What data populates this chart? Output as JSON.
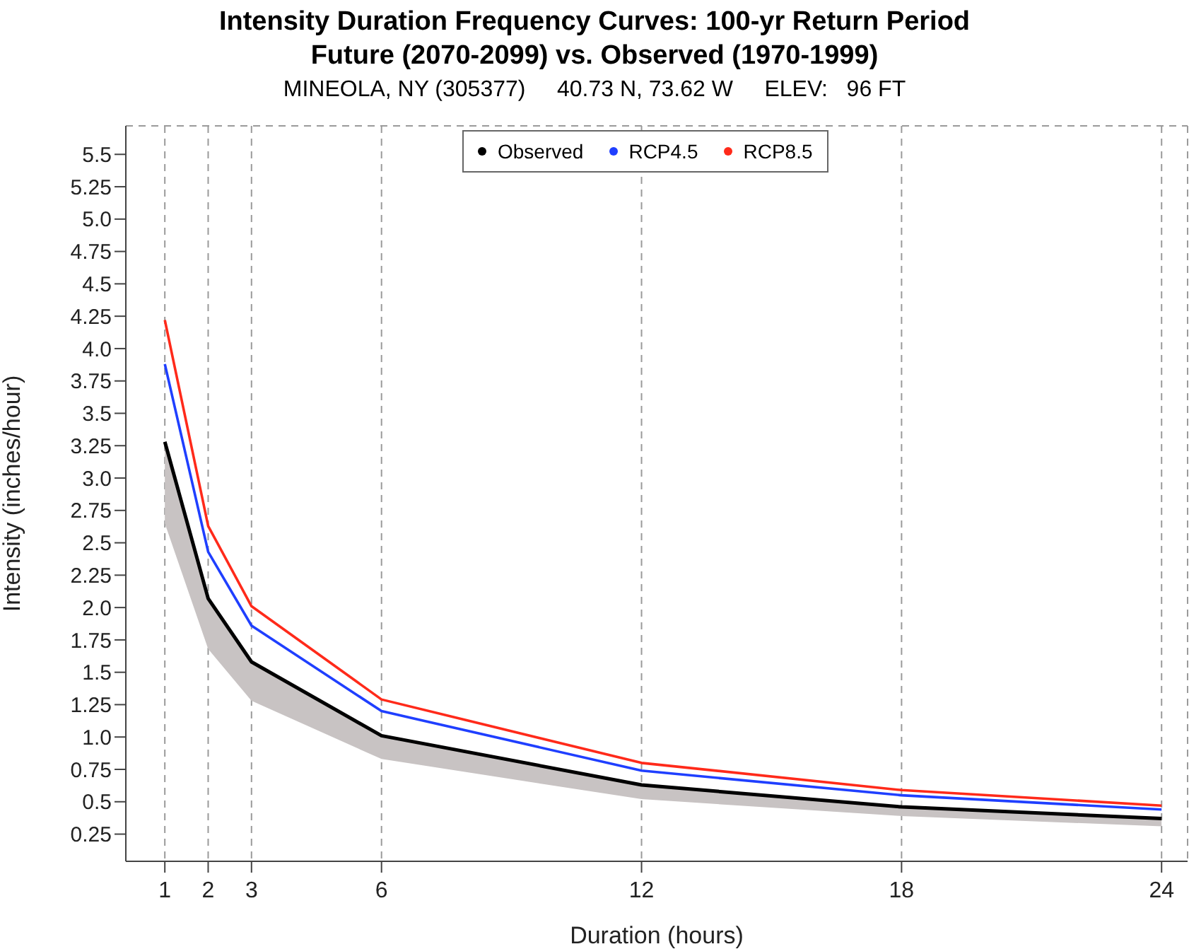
{
  "chart_data": {
    "type": "line",
    "title": "Intensity Duration Frequency Curves: 100-yr Return Period\nFuture (2070-2099) vs. Observed (1970-1999)",
    "subtitle": "MINEOLA, NY (305377)     40.73 N, 73.62 W     ELEV:   96 FT",
    "xlabel": "Duration (hours)",
    "ylabel": "Intensity (inches/hour)",
    "x": [
      1,
      2,
      3,
      6,
      12,
      18,
      24
    ],
    "series": [
      {
        "name": "Observed",
        "color": "#000000",
        "values": [
          3.28,
          2.07,
          1.58,
          1.01,
          0.63,
          0.46,
          0.37
        ],
        "lower": [
          2.65,
          1.68,
          1.28,
          0.83,
          0.52,
          0.39,
          0.31
        ],
        "upper": [
          3.28,
          2.07,
          1.58,
          1.01,
          0.63,
          0.46,
          0.37
        ]
      },
      {
        "name": "RCP4.5",
        "color": "#1f3fff",
        "values": [
          3.88,
          2.43,
          1.86,
          1.2,
          0.74,
          0.55,
          0.44
        ]
      },
      {
        "name": "RCP8.5",
        "color": "#ff2a1a",
        "values": [
          4.22,
          2.63,
          2.01,
          1.29,
          0.8,
          0.59,
          0.47
        ]
      }
    ],
    "xlim": [
      0.1,
      24.6
    ],
    "xticks": [
      1,
      2,
      3,
      6,
      12,
      18,
      24
    ],
    "ylim": [
      0.04,
      5.72
    ],
    "yticks": [
      0.25,
      0.5,
      0.75,
      {
        "value": 1,
        "label": "1.0"
      },
      1.25,
      1.5,
      1.75,
      {
        "value": 2,
        "label": "2.0"
      },
      2.25,
      2.5,
      2.75,
      {
        "value": 3,
        "label": "3.0"
      },
      3.25,
      3.5,
      3.75,
      {
        "value": 4,
        "label": "4.0"
      },
      4.25,
      4.5,
      4.75,
      {
        "value": 5,
        "label": "5.0"
      },
      5.25,
      5.5
    ],
    "grid": true,
    "legend": "top",
    "marker": "none",
    "line_style": "solid"
  }
}
